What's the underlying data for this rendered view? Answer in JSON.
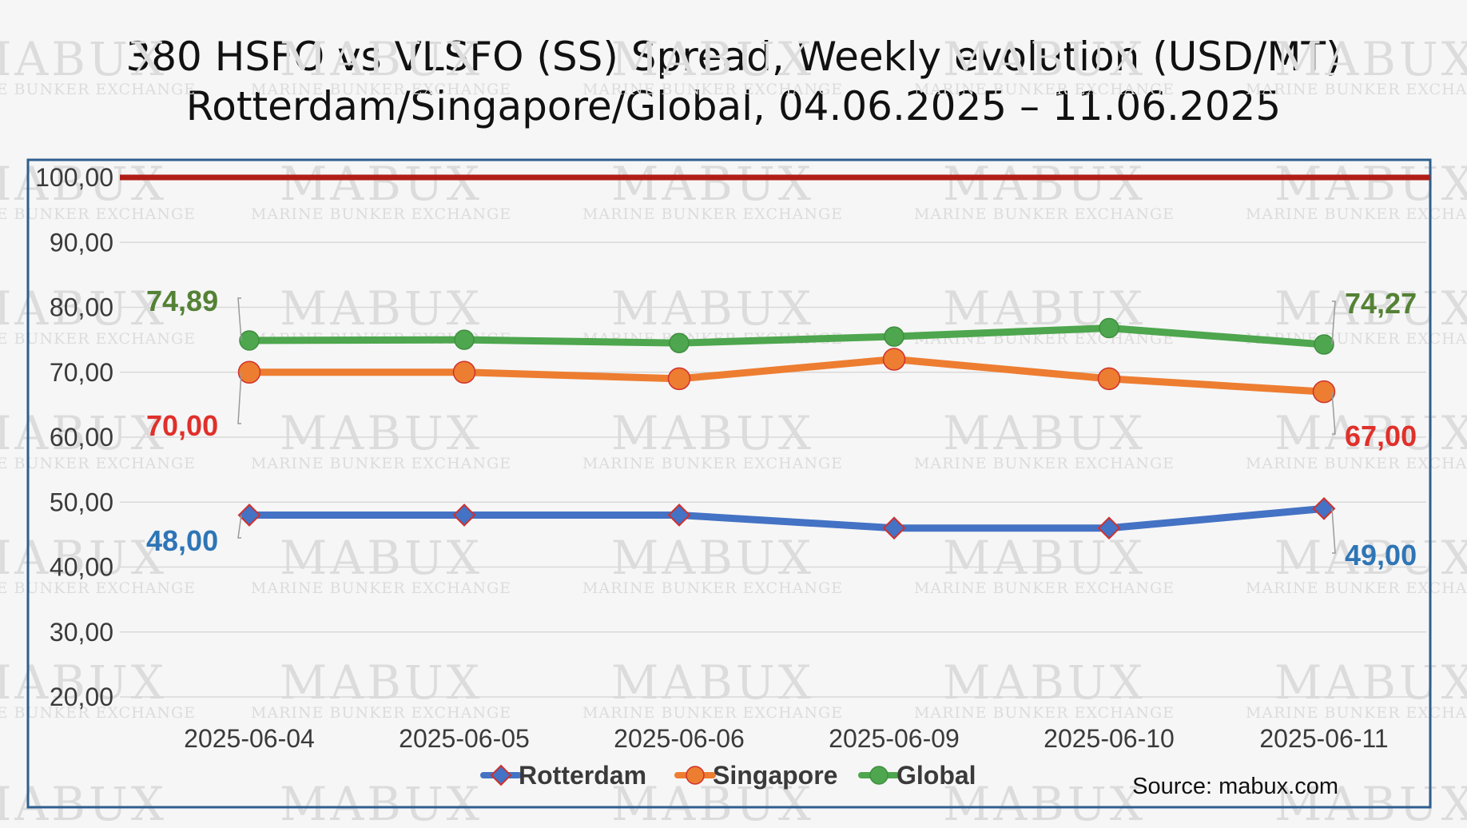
{
  "colors": {
    "rotterdam": "#4472c4",
    "singapore": "#ed7d31",
    "global": "#4ea64e",
    "rotterdam_label": "#2e75b6",
    "singapore_label": "#e0302b",
    "global_label": "#548235",
    "reference_line": "#b01e17",
    "frame": "#2e5f8e",
    "marker_edge_red": "#d0312d"
  },
  "watermark": {
    "brand": "MABUX",
    "tagline": "MARINE BUNKER EXCHANGE"
  },
  "chart_data": {
    "type": "line",
    "title": "380 HSFO vs VLSFO (SS) Spread, Weekly evolution (USD/MT)",
    "subtitle": "Rotterdam/Singapore/Global, 04.06.2025 – 11.06.2025",
    "categories": [
      "2025-06-04",
      "2025-06-05",
      "2025-06-06",
      "2025-06-09",
      "2025-06-10",
      "2025-06-11"
    ],
    "ylim": [
      20,
      100
    ],
    "yticks": [
      20,
      30,
      40,
      50,
      60,
      70,
      80,
      90,
      100
    ],
    "ytick_labels": [
      "20,00",
      "30,00",
      "40,00",
      "50,00",
      "60,00",
      "70,00",
      "80,00",
      "90,00",
      "100,00"
    ],
    "reference_line": 100,
    "series": [
      {
        "name": "Rotterdam",
        "marker": "diamond",
        "values": [
          48,
          48,
          48,
          46,
          46,
          49
        ],
        "first_label": "48,00",
        "last_label": "49,00"
      },
      {
        "name": "Singapore",
        "marker": "circle",
        "values": [
          70,
          70,
          69,
          72,
          69,
          67
        ],
        "first_label": "70,00",
        "last_label": "67,00"
      },
      {
        "name": "Global",
        "marker": "circle",
        "values": [
          74.89,
          75,
          74.5,
          75.5,
          76.8,
          74.27
        ],
        "first_label": "74,89",
        "last_label": "74,27"
      }
    ],
    "legend": [
      "Rotterdam",
      "Singapore",
      "Global"
    ],
    "legend_position": "bottom",
    "source": "Source: mabux.com",
    "grid": true
  }
}
